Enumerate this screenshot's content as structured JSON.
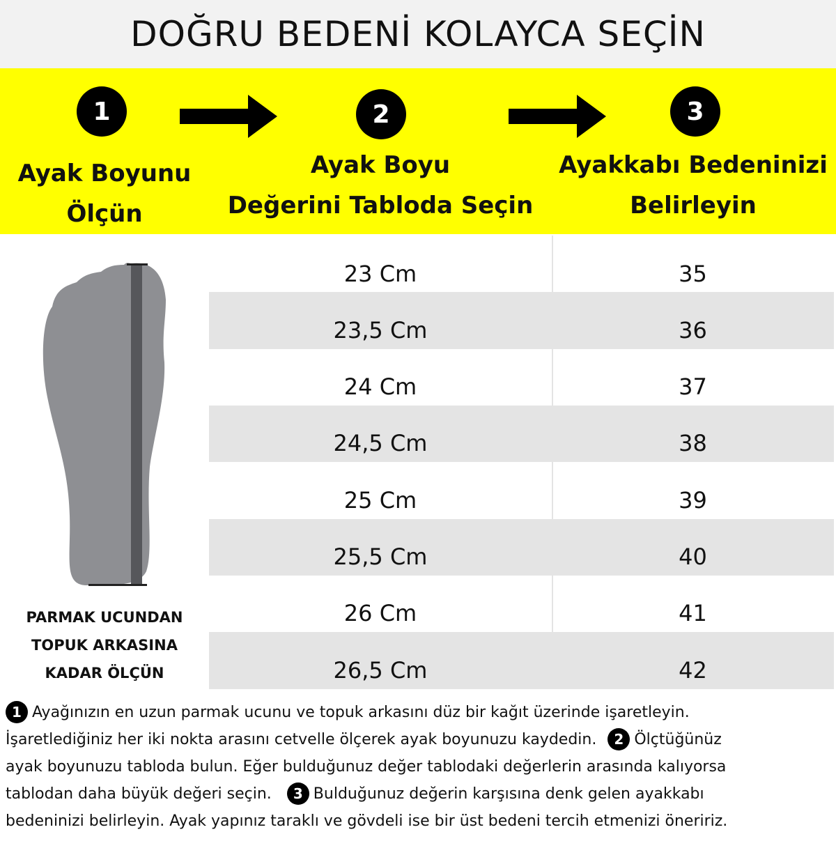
{
  "title": "DOĞRU BEDENİ KOLAYCA SEÇİN",
  "steps": [
    {
      "number": "1",
      "label_lines": [
        "Ayak Boyunu",
        "Ölçün"
      ]
    },
    {
      "number": "2",
      "label_lines": [
        "Ayak Boyu",
        "Değerini Tabloda Seçin"
      ]
    },
    {
      "number": "3",
      "label_lines": [
        "Ayakkabı Bedeninizi",
        "Belirleyin"
      ]
    }
  ],
  "table": [
    {
      "length": "23 Cm",
      "size": "35"
    },
    {
      "length": "23,5 Cm",
      "size": "36"
    },
    {
      "length": "24 Cm",
      "size": "37"
    },
    {
      "length": "24,5 Cm",
      "size": "38"
    },
    {
      "length": "25 Cm",
      "size": "39"
    },
    {
      "length": "25,5 Cm",
      "size": "40"
    },
    {
      "length": "26 Cm",
      "size": "41"
    },
    {
      "length": "26,5 Cm",
      "size": "42"
    }
  ],
  "foot_caption": [
    "PARMAK UCUNDAN",
    "TOPUK ARKASINA",
    "KADAR ÖLÇÜN"
  ],
  "instructions": {
    "line1": "Ayağınızın en uzun parmak ucunu ve topuk arkasını düz bir kağıt üzerinde işaretleyin.",
    "line2a": "İşaretlediğiniz her iki nokta arasını cetvelle ölçerek ayak boyunuzu kaydedin.",
    "line2b": "Ölçtüğünüz",
    "line3": "ayak boyunuzu tabloda bulun. Eğer bulduğunuz değer tablodaki değerlerin arasında kalıyorsa",
    "line4a": "tablodan daha büyük değeri seçin.",
    "line4b": "Bulduğunuz değerin karşısına denk gelen ayakkabı",
    "line5": "bedeninizi belirleyin. Ayak yapınız taraklı ve gövdeli ise bir üst bedeni tercih etmenizi öneririz."
  },
  "colors": {
    "band": "#ffff00",
    "row_alt": "#e4e4e4",
    "foot": "#8e8f93"
  }
}
